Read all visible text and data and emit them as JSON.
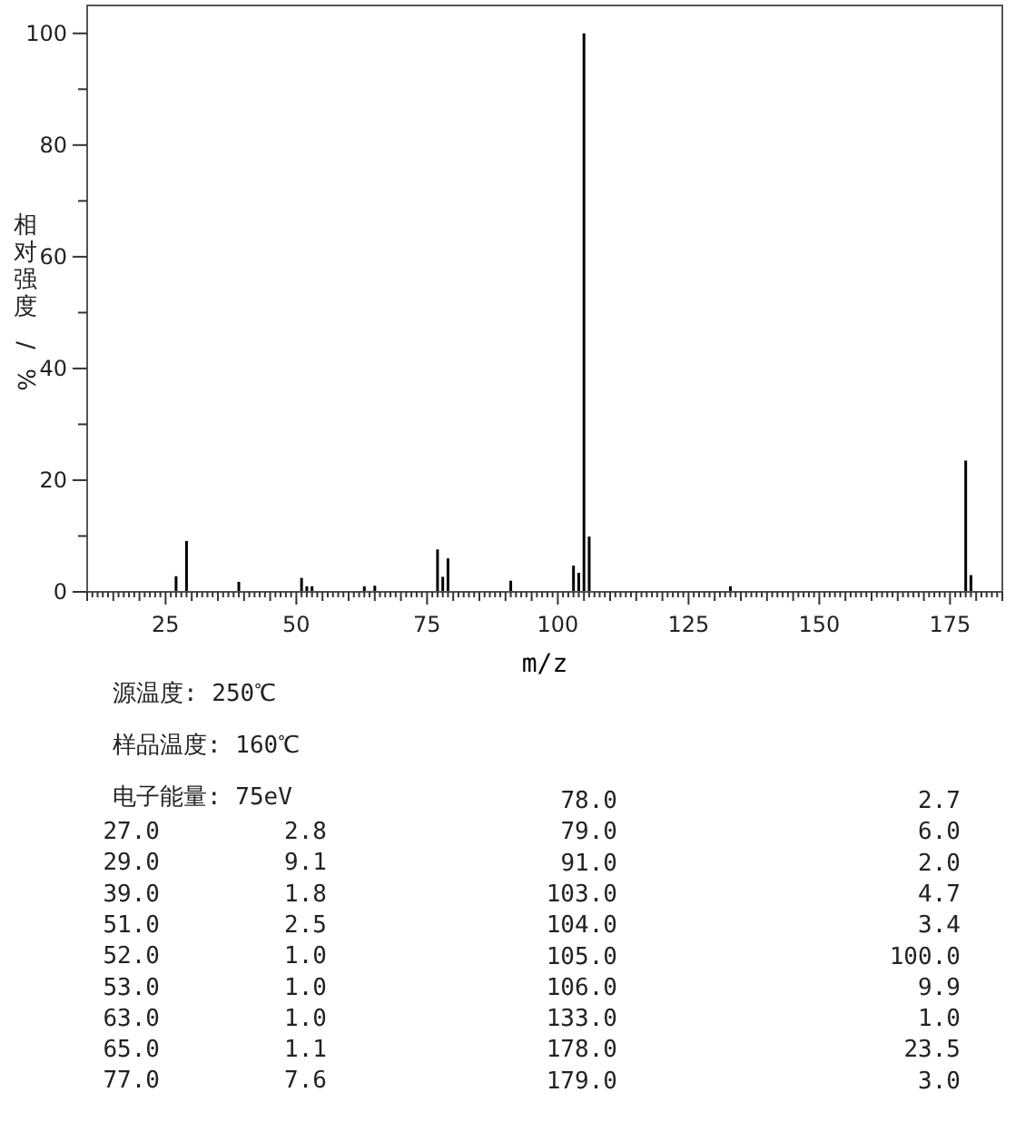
{
  "chart_data": {
    "type": "bar",
    "xlabel": "m/z",
    "ylabel": "相对强度/%",
    "x": [
      27,
      29,
      39,
      51,
      52,
      53,
      63,
      65,
      77,
      78,
      79,
      91,
      103,
      104,
      105,
      106,
      133,
      178,
      179
    ],
    "values": [
      2.8,
      9.1,
      1.8,
      2.5,
      1.0,
      1.0,
      1.0,
      1.1,
      7.6,
      2.7,
      6.0,
      2.0,
      4.7,
      3.4,
      100.0,
      9.9,
      1.0,
      23.5,
      3.0
    ],
    "color": "#000000",
    "xlim": [
      10,
      185
    ],
    "ylim": [
      0,
      105
    ],
    "xticks": [
      {
        "value": 10,
        "label": null
      },
      {
        "value": 11,
        "label": null
      },
      {
        "value": 12,
        "label": null
      },
      {
        "value": 13,
        "label": null
      },
      {
        "value": 14,
        "label": null
      },
      {
        "value": 15,
        "label": null
      },
      {
        "value": 16,
        "label": null
      },
      {
        "value": 17,
        "label": null
      },
      {
        "value": 18,
        "label": null
      },
      {
        "value": 19,
        "label": null
      },
      {
        "value": 20,
        "label": null
      },
      {
        "value": 21,
        "label": null
      },
      {
        "value": 22,
        "label": null
      },
      {
        "value": 23,
        "label": null
      },
      {
        "value": 24,
        "label": null
      },
      25,
      {
        "value": 26,
        "label": null
      },
      {
        "value": 27,
        "label": null
      },
      {
        "value": 28,
        "label": null
      },
      {
        "value": 29,
        "label": null
      },
      {
        "value": 30,
        "label": null
      },
      {
        "value": 31,
        "label": null
      },
      {
        "value": 32,
        "label": null
      },
      {
        "value": 33,
        "label": null
      },
      {
        "value": 34,
        "label": null
      },
      {
        "value": 35,
        "label": null
      },
      {
        "value": 36,
        "label": null
      },
      {
        "value": 37,
        "label": null
      },
      {
        "value": 38,
        "label": null
      },
      {
        "value": 39,
        "label": null
      },
      {
        "value": 40,
        "label": null
      },
      {
        "value": 41,
        "label": null
      },
      {
        "value": 42,
        "label": null
      },
      {
        "value": 43,
        "label": null
      },
      {
        "value": 44,
        "label": null
      },
      {
        "value": 45,
        "label": null
      },
      {
        "value": 46,
        "label": null
      },
      {
        "value": 47,
        "label": null
      },
      {
        "value": 48,
        "label": null
      },
      {
        "value": 49,
        "label": null
      },
      50,
      {
        "value": 51,
        "label": null
      },
      {
        "value": 52,
        "label": null
      },
      {
        "value": 53,
        "label": null
      },
      {
        "value": 54,
        "label": null
      },
      {
        "value": 55,
        "label": null
      },
      {
        "value": 56,
        "label": null
      },
      {
        "value": 57,
        "label": null
      },
      {
        "value": 58,
        "label": null
      },
      {
        "value": 59,
        "label": null
      },
      {
        "value": 60,
        "label": null
      },
      {
        "value": 61,
        "label": null
      },
      {
        "value": 62,
        "label": null
      },
      {
        "value": 63,
        "label": null
      },
      {
        "value": 64,
        "label": null
      },
      {
        "value": 65,
        "label": null
      },
      {
        "value": 66,
        "label": null
      },
      {
        "value": 67,
        "label": null
      },
      {
        "value": 68,
        "label": null
      },
      {
        "value": 69,
        "label": null
      },
      {
        "value": 70,
        "label": null
      },
      {
        "value": 71,
        "label": null
      },
      {
        "value": 72,
        "label": null
      },
      {
        "value": 73,
        "label": null
      },
      {
        "value": 74,
        "label": null
      },
      75,
      {
        "value": 76,
        "label": null
      },
      {
        "value": 77,
        "label": null
      },
      {
        "value": 78,
        "label": null
      },
      {
        "value": 79,
        "label": null
      },
      {
        "value": 80,
        "label": null
      },
      {
        "value": 81,
        "label": null
      },
      {
        "value": 82,
        "label": null
      },
      {
        "value": 83,
        "label": null
      },
      {
        "value": 84,
        "label": null
      },
      {
        "value": 85,
        "label": null
      },
      {
        "value": 86,
        "label": null
      },
      {
        "value": 87,
        "label": null
      },
      {
        "value": 88,
        "label": null
      },
      {
        "value": 89,
        "label": null
      },
      {
        "value": 90,
        "label": null
      },
      {
        "value": 91,
        "label": null
      },
      {
        "value": 92,
        "label": null
      },
      {
        "value": 93,
        "label": null
      },
      {
        "value": 94,
        "label": null
      },
      {
        "value": 95,
        "label": null
      },
      {
        "value": 96,
        "label": null
      },
      {
        "value": 97,
        "label": null
      },
      {
        "value": 98,
        "label": null
      },
      {
        "value": 99,
        "label": null
      },
      100,
      {
        "value": 101,
        "label": null
      },
      {
        "value": 102,
        "label": null
      },
      {
        "value": 103,
        "label": null
      },
      {
        "value": 104,
        "label": null
      },
      {
        "value": 105,
        "label": null
      },
      {
        "value": 106,
        "label": null
      },
      {
        "value": 107,
        "label": null
      },
      {
        "value": 108,
        "label": null
      },
      {
        "value": 109,
        "label": null
      },
      {
        "value": 110,
        "label": null
      },
      {
        "value": 111,
        "label": null
      },
      {
        "value": 112,
        "label": null
      },
      {
        "value": 113,
        "label": null
      },
      {
        "value": 114,
        "label": null
      },
      {
        "value": 115,
        "label": null
      },
      {
        "value": 116,
        "label": null
      },
      {
        "value": 117,
        "label": null
      },
      {
        "value": 118,
        "label": null
      },
      {
        "value": 119,
        "label": null
      },
      {
        "value": 120,
        "label": null
      },
      {
        "value": 121,
        "label": null
      },
      {
        "value": 122,
        "label": null
      },
      {
        "value": 123,
        "label": null
      },
      {
        "value": 124,
        "label": null
      },
      125,
      {
        "value": 126,
        "label": null
      },
      {
        "value": 127,
        "label": null
      },
      {
        "value": 128,
        "label": null
      },
      {
        "value": 129,
        "label": null
      },
      {
        "value": 130,
        "label": null
      },
      {
        "value": 131,
        "label": null
      },
      {
        "value": 132,
        "label": null
      },
      {
        "value": 133,
        "label": null
      },
      {
        "value": 134,
        "label": null
      },
      {
        "value": 135,
        "label": null
      },
      {
        "value": 136,
        "label": null
      },
      {
        "value": 137,
        "label": null
      },
      {
        "value": 138,
        "label": null
      },
      {
        "value": 139,
        "label": null
      },
      {
        "value": 140,
        "label": null
      },
      {
        "value": 141,
        "label": null
      },
      {
        "value": 142,
        "label": null
      },
      {
        "value": 143,
        "label": null
      },
      {
        "value": 144,
        "label": null
      },
      {
        "value": 145,
        "label": null
      },
      {
        "value": 146,
        "label": null
      },
      {
        "value": 147,
        "label": null
      },
      {
        "value": 148,
        "label": null
      },
      {
        "value": 149,
        "label": null
      },
      150,
      {
        "value": 151,
        "label": null
      },
      {
        "value": 152,
        "label": null
      },
      {
        "value": 153,
        "label": null
      },
      {
        "value": 154,
        "label": null
      },
      {
        "value": 155,
        "label": null
      },
      {
        "value": 156,
        "label": null
      },
      {
        "value": 157,
        "label": null
      },
      {
        "value": 158,
        "label": null
      },
      {
        "value": 159,
        "label": null
      },
      {
        "value": 160,
        "label": null
      },
      {
        "value": 161,
        "label": null
      },
      {
        "value": 162,
        "label": null
      },
      {
        "value": 163,
        "label": null
      },
      {
        "value": 164,
        "label": null
      },
      {
        "value": 165,
        "label": null
      },
      {
        "value": 166,
        "label": null
      },
      {
        "value": 167,
        "label": null
      },
      {
        "value": 168,
        "label": null
      },
      {
        "value": 169,
        "label": null
      },
      {
        "value": 170,
        "label": null
      },
      {
        "value": 171,
        "label": null
      },
      {
        "value": 172,
        "label": null
      },
      {
        "value": 173,
        "label": null
      },
      {
        "value": 174,
        "label": null
      },
      175,
      {
        "value": 176,
        "label": null
      },
      {
        "value": 177,
        "label": null
      },
      {
        "value": 178,
        "label": null
      },
      {
        "value": 179,
        "label": null
      },
      {
        "value": 180,
        "label": null
      },
      {
        "value": 181,
        "label": null
      },
      {
        "value": 182,
        "label": null
      },
      {
        "value": 183,
        "label": null
      },
      {
        "value": 184,
        "label": null
      },
      {
        "value": 185,
        "label": null
      }
    ],
    "yticks": [
      0,
      {
        "value": 10,
        "label": null
      },
      20,
      {
        "value": 30,
        "label": null
      },
      40,
      {
        "value": 50,
        "label": null
      },
      60,
      {
        "value": 70,
        "label": null
      },
      80,
      {
        "value": 90,
        "label": null
      },
      100
    ],
    "annotations": [
      "源温度: 250℃",
      "样品温度: 160℃",
      "电子能量: 75eV",
      "27.0",
      "2.8",
      "29.0",
      "9.1",
      "39.0",
      "1.8",
      "51.0",
      "2.5",
      "52.0",
      "1.0",
      "53.0",
      "1.0",
      "63.0",
      "1.0",
      "65.0",
      "1.1",
      "77.0",
      "7.6",
      "78.0",
      "2.7",
      "79.0",
      "6.0",
      "91.0",
      "2.0",
      "103.0",
      "4.7",
      "104.0",
      "3.4",
      "105.0",
      "100.0",
      "106.0",
      "9.9",
      "133.0",
      "1.0",
      "178.0",
      "23.5",
      "179.0",
      "3.0"
    ],
    "grid": false
  }
}
